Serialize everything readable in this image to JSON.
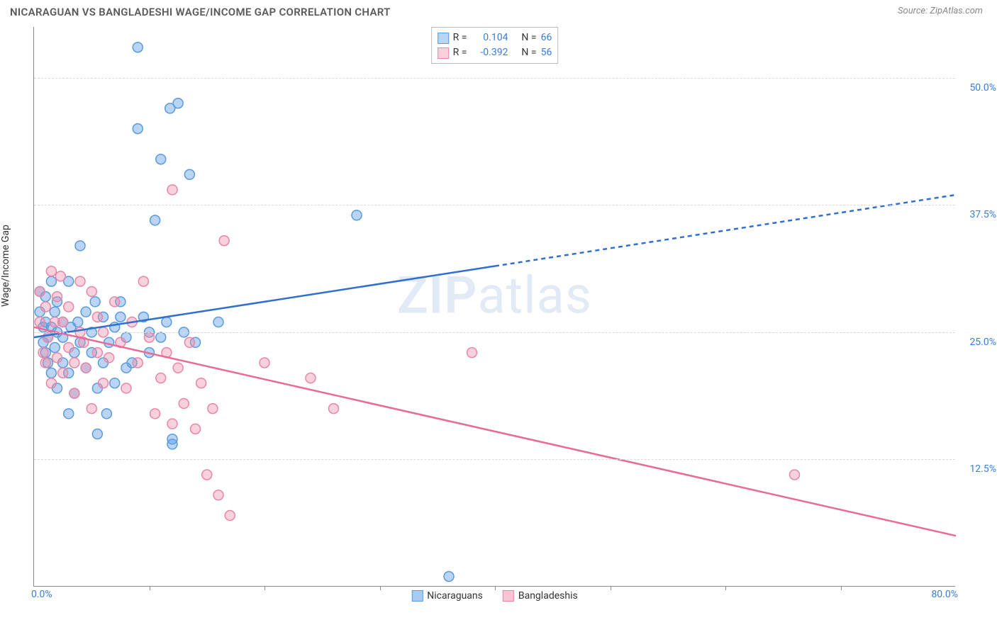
{
  "title": "NICARAGUAN VS BANGLADESHI WAGE/INCOME GAP CORRELATION CHART",
  "source": "Source: ZipAtlas.com",
  "watermark_a": "ZIP",
  "watermark_b": "atlas",
  "chart": {
    "type": "scatter",
    "ylabel": "Wage/Income Gap",
    "background_color": "#ffffff",
    "grid_color": "#d9d9d9",
    "axis_color": "#888888",
    "tick_label_color": "#3b7dd8",
    "xlim": [
      0,
      80
    ],
    "ylim": [
      0,
      55
    ],
    "x_axis_labels": {
      "left": "0.0%",
      "right": "80.0%"
    },
    "y_ticks": [
      {
        "value": 12.5,
        "label": "12.5%"
      },
      {
        "value": 25.0,
        "label": "25.0%"
      },
      {
        "value": 37.5,
        "label": "37.5%"
      },
      {
        "value": 50.0,
        "label": "50.0%"
      }
    ],
    "x_tick_positions": [
      10,
      20,
      30,
      40,
      50,
      60,
      70
    ],
    "marker_radius": 7,
    "marker_stroke_width": 1.5,
    "line_width": 2.5,
    "series": [
      {
        "name": "Nicaraguans",
        "fill": "rgba(100,160,230,0.45)",
        "stroke": "#5a9bdc",
        "line_color": "#2f6fd0",
        "r_label": "R =",
        "r_value": "0.104",
        "n_label": "N =",
        "n_value": "66",
        "trend": {
          "x1": 0,
          "y1": 24.5,
          "x2": 80,
          "y2": 38.5,
          "solid_until_x": 40
        },
        "points": [
          [
            0.5,
            27
          ],
          [
            0.5,
            29
          ],
          [
            0.8,
            25.5
          ],
          [
            0.8,
            24
          ],
          [
            1,
            26
          ],
          [
            1,
            23
          ],
          [
            1,
            28.5
          ],
          [
            1.2,
            22
          ],
          [
            1.2,
            24.5
          ],
          [
            1.5,
            30
          ],
          [
            1.5,
            21
          ],
          [
            1.5,
            25.5
          ],
          [
            1.8,
            23.5
          ],
          [
            1.8,
            27
          ],
          [
            2,
            19.5
          ],
          [
            2,
            25
          ],
          [
            2,
            28
          ],
          [
            2.5,
            22
          ],
          [
            2.5,
            26
          ],
          [
            2.5,
            24.5
          ],
          [
            3,
            21
          ],
          [
            3,
            17
          ],
          [
            3,
            30
          ],
          [
            3.2,
            25.5
          ],
          [
            3.5,
            23
          ],
          [
            3.5,
            19
          ],
          [
            3.8,
            26
          ],
          [
            4,
            24
          ],
          [
            4,
            33.5
          ],
          [
            4.5,
            27
          ],
          [
            4.5,
            21.5
          ],
          [
            5,
            25
          ],
          [
            5,
            23
          ],
          [
            5.3,
            28
          ],
          [
            5.5,
            15
          ],
          [
            5.5,
            19.5
          ],
          [
            6,
            22
          ],
          [
            6,
            26.5
          ],
          [
            6.3,
            17
          ],
          [
            6.5,
            24
          ],
          [
            7,
            20
          ],
          [
            7,
            25.5
          ],
          [
            7.5,
            26.5
          ],
          [
            7.5,
            28
          ],
          [
            8,
            21.5
          ],
          [
            8,
            24.5
          ],
          [
            8.5,
            22
          ],
          [
            9,
            53
          ],
          [
            9,
            45
          ],
          [
            9.5,
            26.5
          ],
          [
            10,
            25
          ],
          [
            10,
            23
          ],
          [
            10.5,
            36
          ],
          [
            11,
            24.5
          ],
          [
            11,
            42
          ],
          [
            11.5,
            26
          ],
          [
            11.8,
            47
          ],
          [
            12,
            14.5
          ],
          [
            12,
            14
          ],
          [
            12.5,
            47.5
          ],
          [
            13,
            25
          ],
          [
            13.5,
            40.5
          ],
          [
            14,
            24
          ],
          [
            16,
            26
          ],
          [
            28,
            36.5
          ],
          [
            36,
            1
          ]
        ]
      },
      {
        "name": "Bangladeshis",
        "fill": "rgba(240,140,170,0.40)",
        "stroke": "#e985a6",
        "line_color": "#e86a95",
        "r_label": "R =",
        "r_value": "-0.392",
        "n_label": "N =",
        "n_value": "56",
        "trend": {
          "x1": 0,
          "y1": 25.5,
          "x2": 80,
          "y2": 5.0,
          "solid_until_x": 80
        },
        "points": [
          [
            0.5,
            29
          ],
          [
            0.5,
            26
          ],
          [
            0.8,
            23
          ],
          [
            1,
            27.5
          ],
          [
            1,
            22
          ],
          [
            1.2,
            24.5
          ],
          [
            1.5,
            31
          ],
          [
            1.5,
            20
          ],
          [
            1.8,
            26
          ],
          [
            2,
            22.5
          ],
          [
            2,
            28.5
          ],
          [
            2.3,
            30.5
          ],
          [
            2.5,
            21
          ],
          [
            2.5,
            26
          ],
          [
            3,
            23.5
          ],
          [
            3,
            27.5
          ],
          [
            3.5,
            19
          ],
          [
            3.5,
            22
          ],
          [
            4,
            25
          ],
          [
            4,
            30
          ],
          [
            4.3,
            24
          ],
          [
            4.5,
            21.5
          ],
          [
            5,
            29
          ],
          [
            5,
            17.5
          ],
          [
            5.5,
            26.5
          ],
          [
            5.5,
            23
          ],
          [
            6,
            20
          ],
          [
            6,
            25
          ],
          [
            6.5,
            22.5
          ],
          [
            7,
            28
          ],
          [
            7.5,
            24
          ],
          [
            8,
            19.5
          ],
          [
            8.5,
            26
          ],
          [
            9,
            22
          ],
          [
            9.5,
            30
          ],
          [
            10,
            24.5
          ],
          [
            10.5,
            17
          ],
          [
            11,
            20.5
          ],
          [
            11.5,
            23
          ],
          [
            12,
            16
          ],
          [
            12,
            39
          ],
          [
            12.5,
            21.5
          ],
          [
            13,
            18
          ],
          [
            13.5,
            24
          ],
          [
            14,
            15.5
          ],
          [
            14.5,
            20
          ],
          [
            15,
            11
          ],
          [
            15.5,
            17.5
          ],
          [
            16,
            9
          ],
          [
            16.5,
            34
          ],
          [
            17,
            7
          ],
          [
            20,
            22
          ],
          [
            24,
            20.5
          ],
          [
            26,
            17.5
          ],
          [
            38,
            23
          ],
          [
            66,
            11
          ]
        ]
      }
    ],
    "bottom_legend": [
      {
        "label": "Nicaraguans",
        "fill": "rgba(100,160,230,0.55)",
        "stroke": "#5a9bdc"
      },
      {
        "label": "Bangladeshis",
        "fill": "rgba(240,140,170,0.50)",
        "stroke": "#e985a6"
      }
    ]
  }
}
